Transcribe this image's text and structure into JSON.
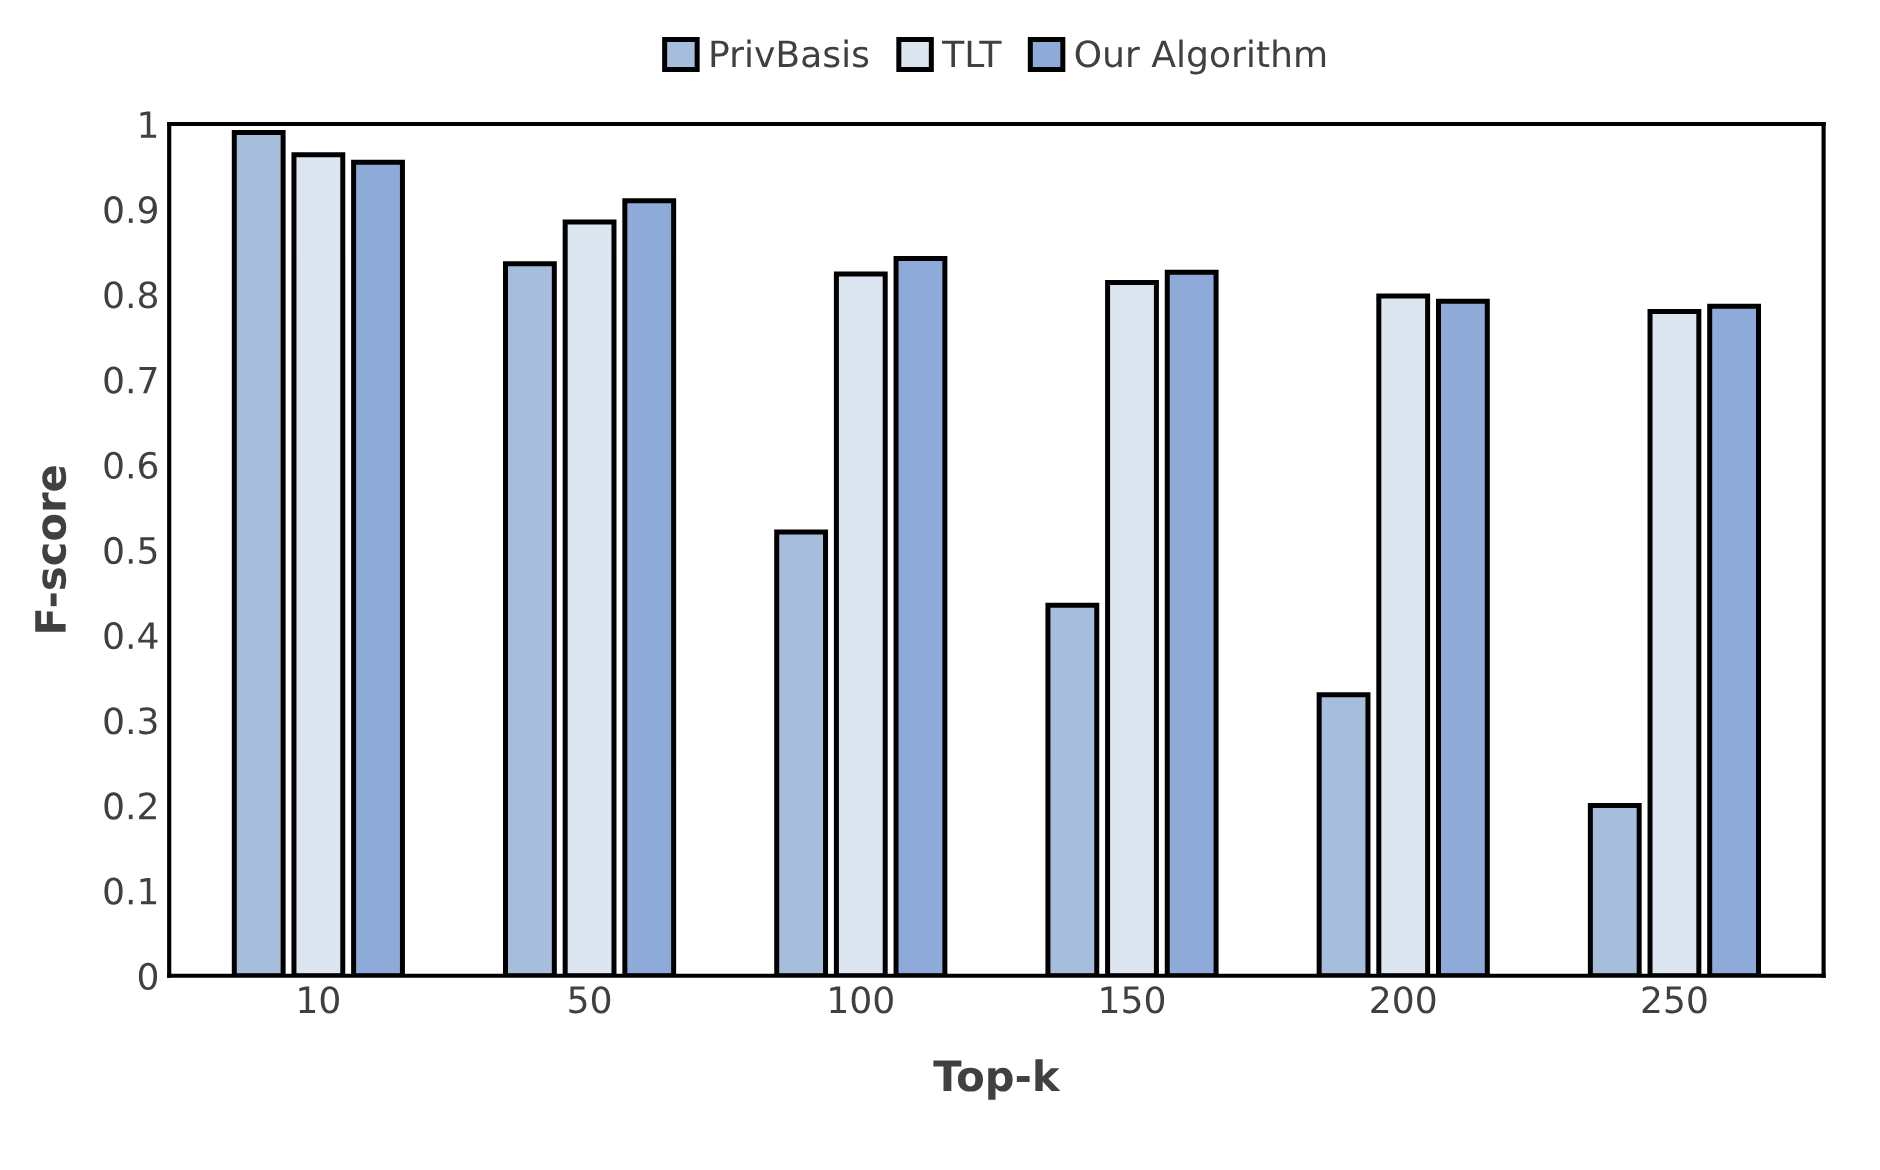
{
  "chart_data": {
    "type": "bar",
    "xlabel": "Top-k",
    "ylabel": "F-score",
    "categories": [
      "10",
      "50",
      "100",
      "150",
      "200",
      "250"
    ],
    "series": [
      {
        "name": "PrivBasis",
        "color": "#a6bddb",
        "values": [
          0.99,
          0.836,
          0.521,
          0.435,
          0.33,
          0.2
        ]
      },
      {
        "name": "TLT",
        "color": "#dce6f1",
        "values": [
          0.964,
          0.885,
          0.824,
          0.814,
          0.798,
          0.78
        ]
      },
      {
        "name": "Our Algorithm",
        "color": "#8eaad8",
        "values": [
          0.955,
          0.91,
          0.842,
          0.826,
          0.792,
          0.786
        ]
      }
    ],
    "ylim": [
      0,
      1
    ],
    "yticks": [
      0,
      0.1,
      0.2,
      0.3,
      0.4,
      0.5,
      0.6,
      0.7,
      0.8,
      0.9,
      1
    ],
    "grid": false,
    "legend": "top"
  }
}
